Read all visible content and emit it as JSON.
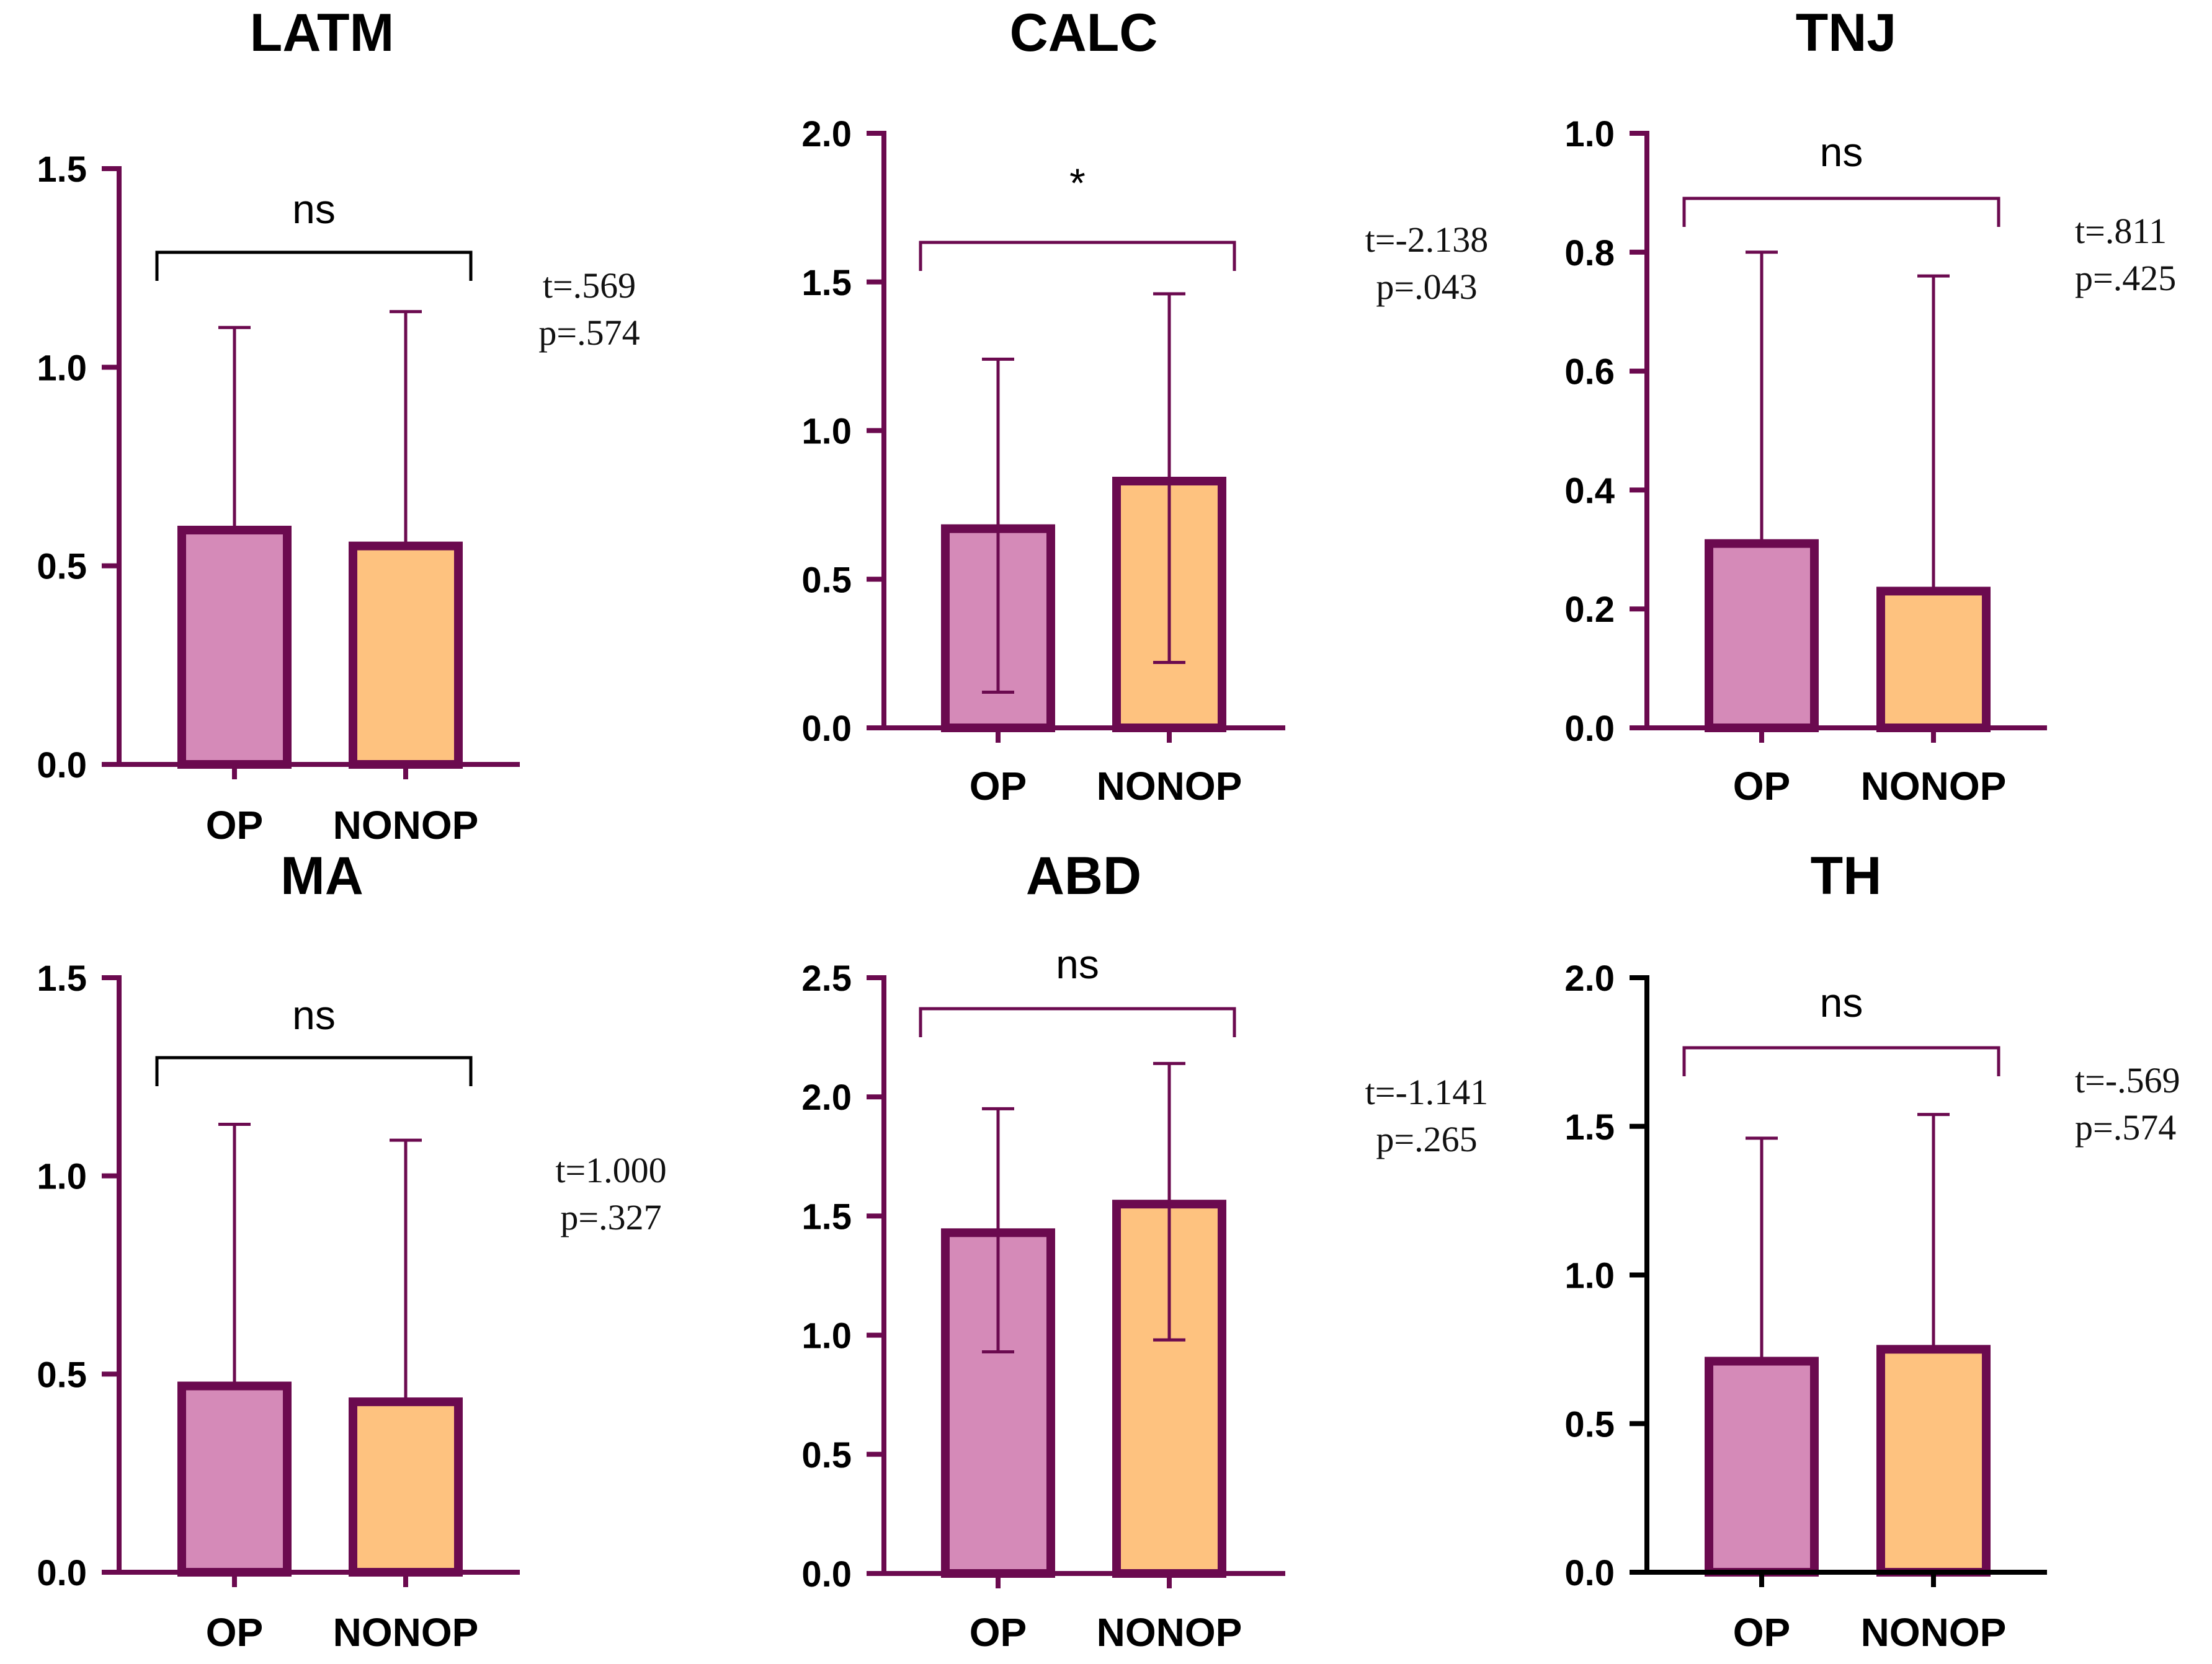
{
  "colors": {
    "axis": "#6b0a4f",
    "bar_edge": "#6b0a4f",
    "op_fill": "#d58ab8",
    "nonop_fill": "#fec27f",
    "bracket_black": "#000000"
  },
  "chart_data": [
    {
      "type": "bar",
      "title": "LATM",
      "categories": [
        "OP",
        "NONOP"
      ],
      "values": [
        0.59,
        0.55
      ],
      "error_upper": [
        1.1,
        1.14
      ],
      "error_lower": [
        null,
        null
      ],
      "ylim": [
        0,
        1.5
      ],
      "yticks": [
        "0.0",
        "0.5",
        "1.0",
        "1.5"
      ],
      "significance": "ns",
      "stats": [
        "t=.569",
        "p=.574"
      ]
    },
    {
      "type": "bar",
      "title": "CALC",
      "categories": [
        "OP",
        "NONOP"
      ],
      "values": [
        0.67,
        0.83
      ],
      "error_upper": [
        1.24,
        1.46
      ],
      "error_lower": [
        0.12,
        0.22
      ],
      "ylim": [
        0,
        2.0
      ],
      "yticks": [
        "0.0",
        "0.5",
        "1.0",
        "1.5",
        "2.0"
      ],
      "significance": "*",
      "stats": [
        "t=-2.138",
        "p=.043"
      ]
    },
    {
      "type": "bar",
      "title": "TNJ",
      "categories": [
        "OP",
        "NONOP"
      ],
      "values": [
        0.31,
        0.23
      ],
      "error_upper": [
        0.8,
        0.76
      ],
      "error_lower": [
        null,
        null
      ],
      "ylim": [
        0,
        1.0
      ],
      "yticks": [
        "0.0",
        "0.2",
        "0.4",
        "0.6",
        "0.8",
        "1.0"
      ],
      "significance": "ns",
      "stats": [
        "t=.811",
        "p=.425"
      ]
    },
    {
      "type": "bar",
      "title": "MA",
      "categories": [
        "OP",
        "NONOP"
      ],
      "values": [
        0.47,
        0.43
      ],
      "error_upper": [
        1.13,
        1.09
      ],
      "error_lower": [
        null,
        null
      ],
      "ylim": [
        0,
        1.5
      ],
      "yticks": [
        "0.0",
        "0.5",
        "1.0",
        "1.5"
      ],
      "significance": "ns",
      "stats": [
        "t=1.000",
        "p=.327"
      ]
    },
    {
      "type": "bar",
      "title": "ABD",
      "categories": [
        "OP",
        "NONOP"
      ],
      "values": [
        1.43,
        1.55
      ],
      "error_upper": [
        1.95,
        2.14
      ],
      "error_lower": [
        0.93,
        0.98
      ],
      "ylim": [
        0,
        2.5
      ],
      "yticks": [
        "0.0",
        "0.5",
        "1.0",
        "1.5",
        "2.0",
        "2.5"
      ],
      "significance": "ns",
      "stats": [
        "t=-1.141",
        "p=.265"
      ]
    },
    {
      "type": "bar",
      "title": "TH",
      "categories": [
        "OP",
        "NONOP"
      ],
      "values": [
        0.71,
        0.75
      ],
      "error_upper": [
        1.46,
        1.54
      ],
      "error_lower": [
        null,
        null
      ],
      "ylim": [
        0,
        2.0
      ],
      "yticks": [
        "0.0",
        "0.5",
        "1.0",
        "1.5",
        "2.0"
      ],
      "significance": "ns",
      "stats": [
        "t=-.569",
        "p=.574"
      ]
    }
  ]
}
